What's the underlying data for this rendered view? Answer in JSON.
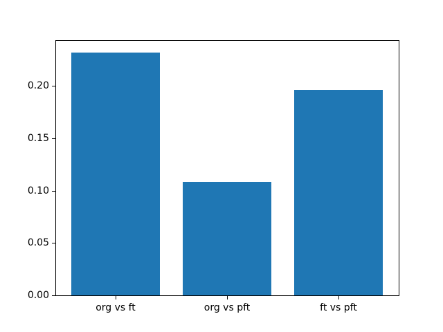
{
  "figure": {
    "background": "#ffffff"
  },
  "chart_data": {
    "type": "bar",
    "title": "",
    "xlabel": "",
    "ylabel": "",
    "categories": [
      "org vs ft",
      "org vs pft",
      "ft vs pft"
    ],
    "values": [
      0.232,
      0.108,
      0.196
    ],
    "bar_color": "#1f77b4",
    "bar_width": 0.8,
    "xlim": [
      -0.54,
      2.54
    ],
    "ylim": [
      0,
      0.2436
    ],
    "yticks": [
      0.0,
      0.05,
      0.1,
      0.15,
      0.2
    ],
    "ytick_labels": [
      "0.00",
      "0.05",
      "0.10",
      "0.15",
      "0.20"
    ],
    "grid": false,
    "legend": null,
    "frame_color": "#000000",
    "tick_color": "#000000",
    "text_color": "#000000"
  }
}
